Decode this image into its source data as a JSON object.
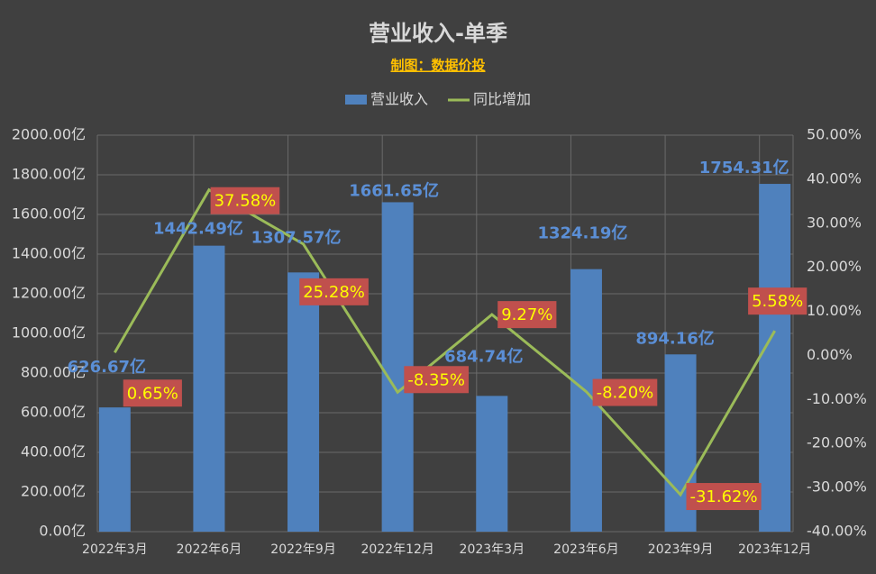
{
  "chart_data": {
    "type": "bar-line",
    "title": "营业收入-单季",
    "subtitle": "制图：数据价投",
    "categories": [
      "2022年3月",
      "2022年6月",
      "2022年9月",
      "2022年12月",
      "2023年3月",
      "2023年6月",
      "2023年9月",
      "2023年12月"
    ],
    "series": [
      {
        "name": "营业收入",
        "type": "bar",
        "color": "#4f81bd",
        "values": [
          626.67,
          1442.49,
          1307.57,
          1661.65,
          684.74,
          1324.19,
          894.16,
          1754.31
        ],
        "value_labels": [
          "626.67亿",
          "1442.49亿",
          "1307.57亿",
          "1661.65亿",
          "684.74亿",
          "1324.19亿",
          "894.16亿",
          "1754.31亿"
        ]
      },
      {
        "name": "同比增加",
        "type": "line",
        "axis": "y2",
        "color": "#9bbb59",
        "values": [
          0.65,
          37.58,
          25.28,
          -8.35,
          9.27,
          -8.2,
          -31.62,
          5.58
        ],
        "value_labels": [
          "0.65%",
          "37.58%",
          "25.28%",
          "-8.35%",
          "9.27%",
          "-8.20%",
          "-31.62%",
          "5.58%"
        ]
      }
    ],
    "ylim": [
      0,
      2000
    ],
    "yticks": [
      {
        "value": 0,
        "label": "0.00亿"
      },
      {
        "value": 200,
        "label": "200.00亿"
      },
      {
        "value": 400,
        "label": "400.00亿"
      },
      {
        "value": 600,
        "label": "600.00亿"
      },
      {
        "value": 800,
        "label": "800.00亿"
      },
      {
        "value": 1000,
        "label": "1000.00亿"
      },
      {
        "value": 1200,
        "label": "1200.00亿"
      },
      {
        "value": 1400,
        "label": "1400.00亿"
      },
      {
        "value": 1600,
        "label": "1600.00亿"
      },
      {
        "value": 1800,
        "label": "1800.00亿"
      },
      {
        "value": 2000,
        "label": "2000.00亿"
      }
    ],
    "y2lim": [
      -40,
      50
    ],
    "y2ticks": [
      {
        "value": -40,
        "label": "-40.00%"
      },
      {
        "value": -30,
        "label": "-30.00%"
      },
      {
        "value": -20,
        "label": "-20.00%"
      },
      {
        "value": -10,
        "label": "-10.00%"
      },
      {
        "value": 0,
        "label": "0.00%"
      },
      {
        "value": 10,
        "label": "10.00%"
      },
      {
        "value": 20,
        "label": "20.00%"
      },
      {
        "value": 30,
        "label": "30.00%"
      },
      {
        "value": 40,
        "label": "40.00%"
      },
      {
        "value": 50,
        "label": "50.00%"
      }
    ],
    "grid": true,
    "legend": "top"
  }
}
